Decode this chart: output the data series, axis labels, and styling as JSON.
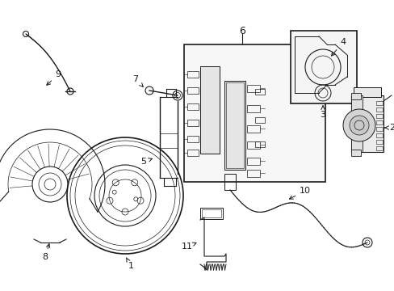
{
  "background_color": "#ffffff",
  "line_color": "#1a1a1a",
  "fig_width": 4.89,
  "fig_height": 3.6,
  "dpi": 100,
  "xlim": [
    0,
    489
  ],
  "ylim": [
    0,
    360
  ]
}
